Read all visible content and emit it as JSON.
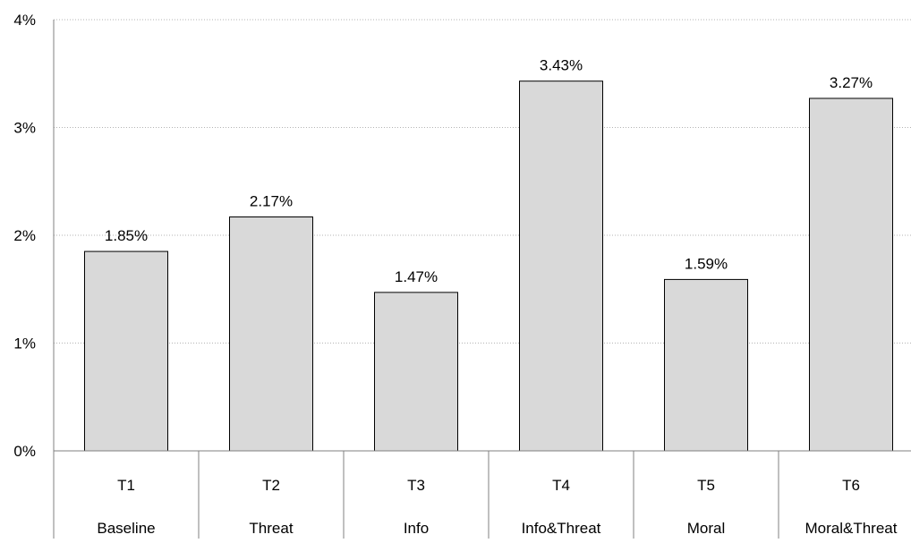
{
  "chart_data": {
    "type": "bar",
    "title": "",
    "xlabel": "",
    "ylabel": "",
    "ylim": [
      0,
      4
    ],
    "y_ticks": [
      "0%",
      "1%",
      "2%",
      "3%",
      "4%"
    ],
    "grid": true,
    "categories": [
      "T1",
      "T2",
      "T3",
      "T4",
      "T5",
      "T6"
    ],
    "category_sublabels": [
      "Baseline",
      "Threat",
      "Info",
      "Info&Threat",
      "Moral",
      "Moral&Threat"
    ],
    "values": [
      1.85,
      2.17,
      1.47,
      3.43,
      1.59,
      3.27
    ],
    "data_labels": [
      "1.85%",
      "2.17%",
      "1.47%",
      "3.43%",
      "1.59%",
      "3.27%"
    ],
    "colors": {
      "bar_fill": "#d9d9d9",
      "bar_stroke": "#000000",
      "grid": "#b3b3b3",
      "axis": "#808080"
    }
  }
}
